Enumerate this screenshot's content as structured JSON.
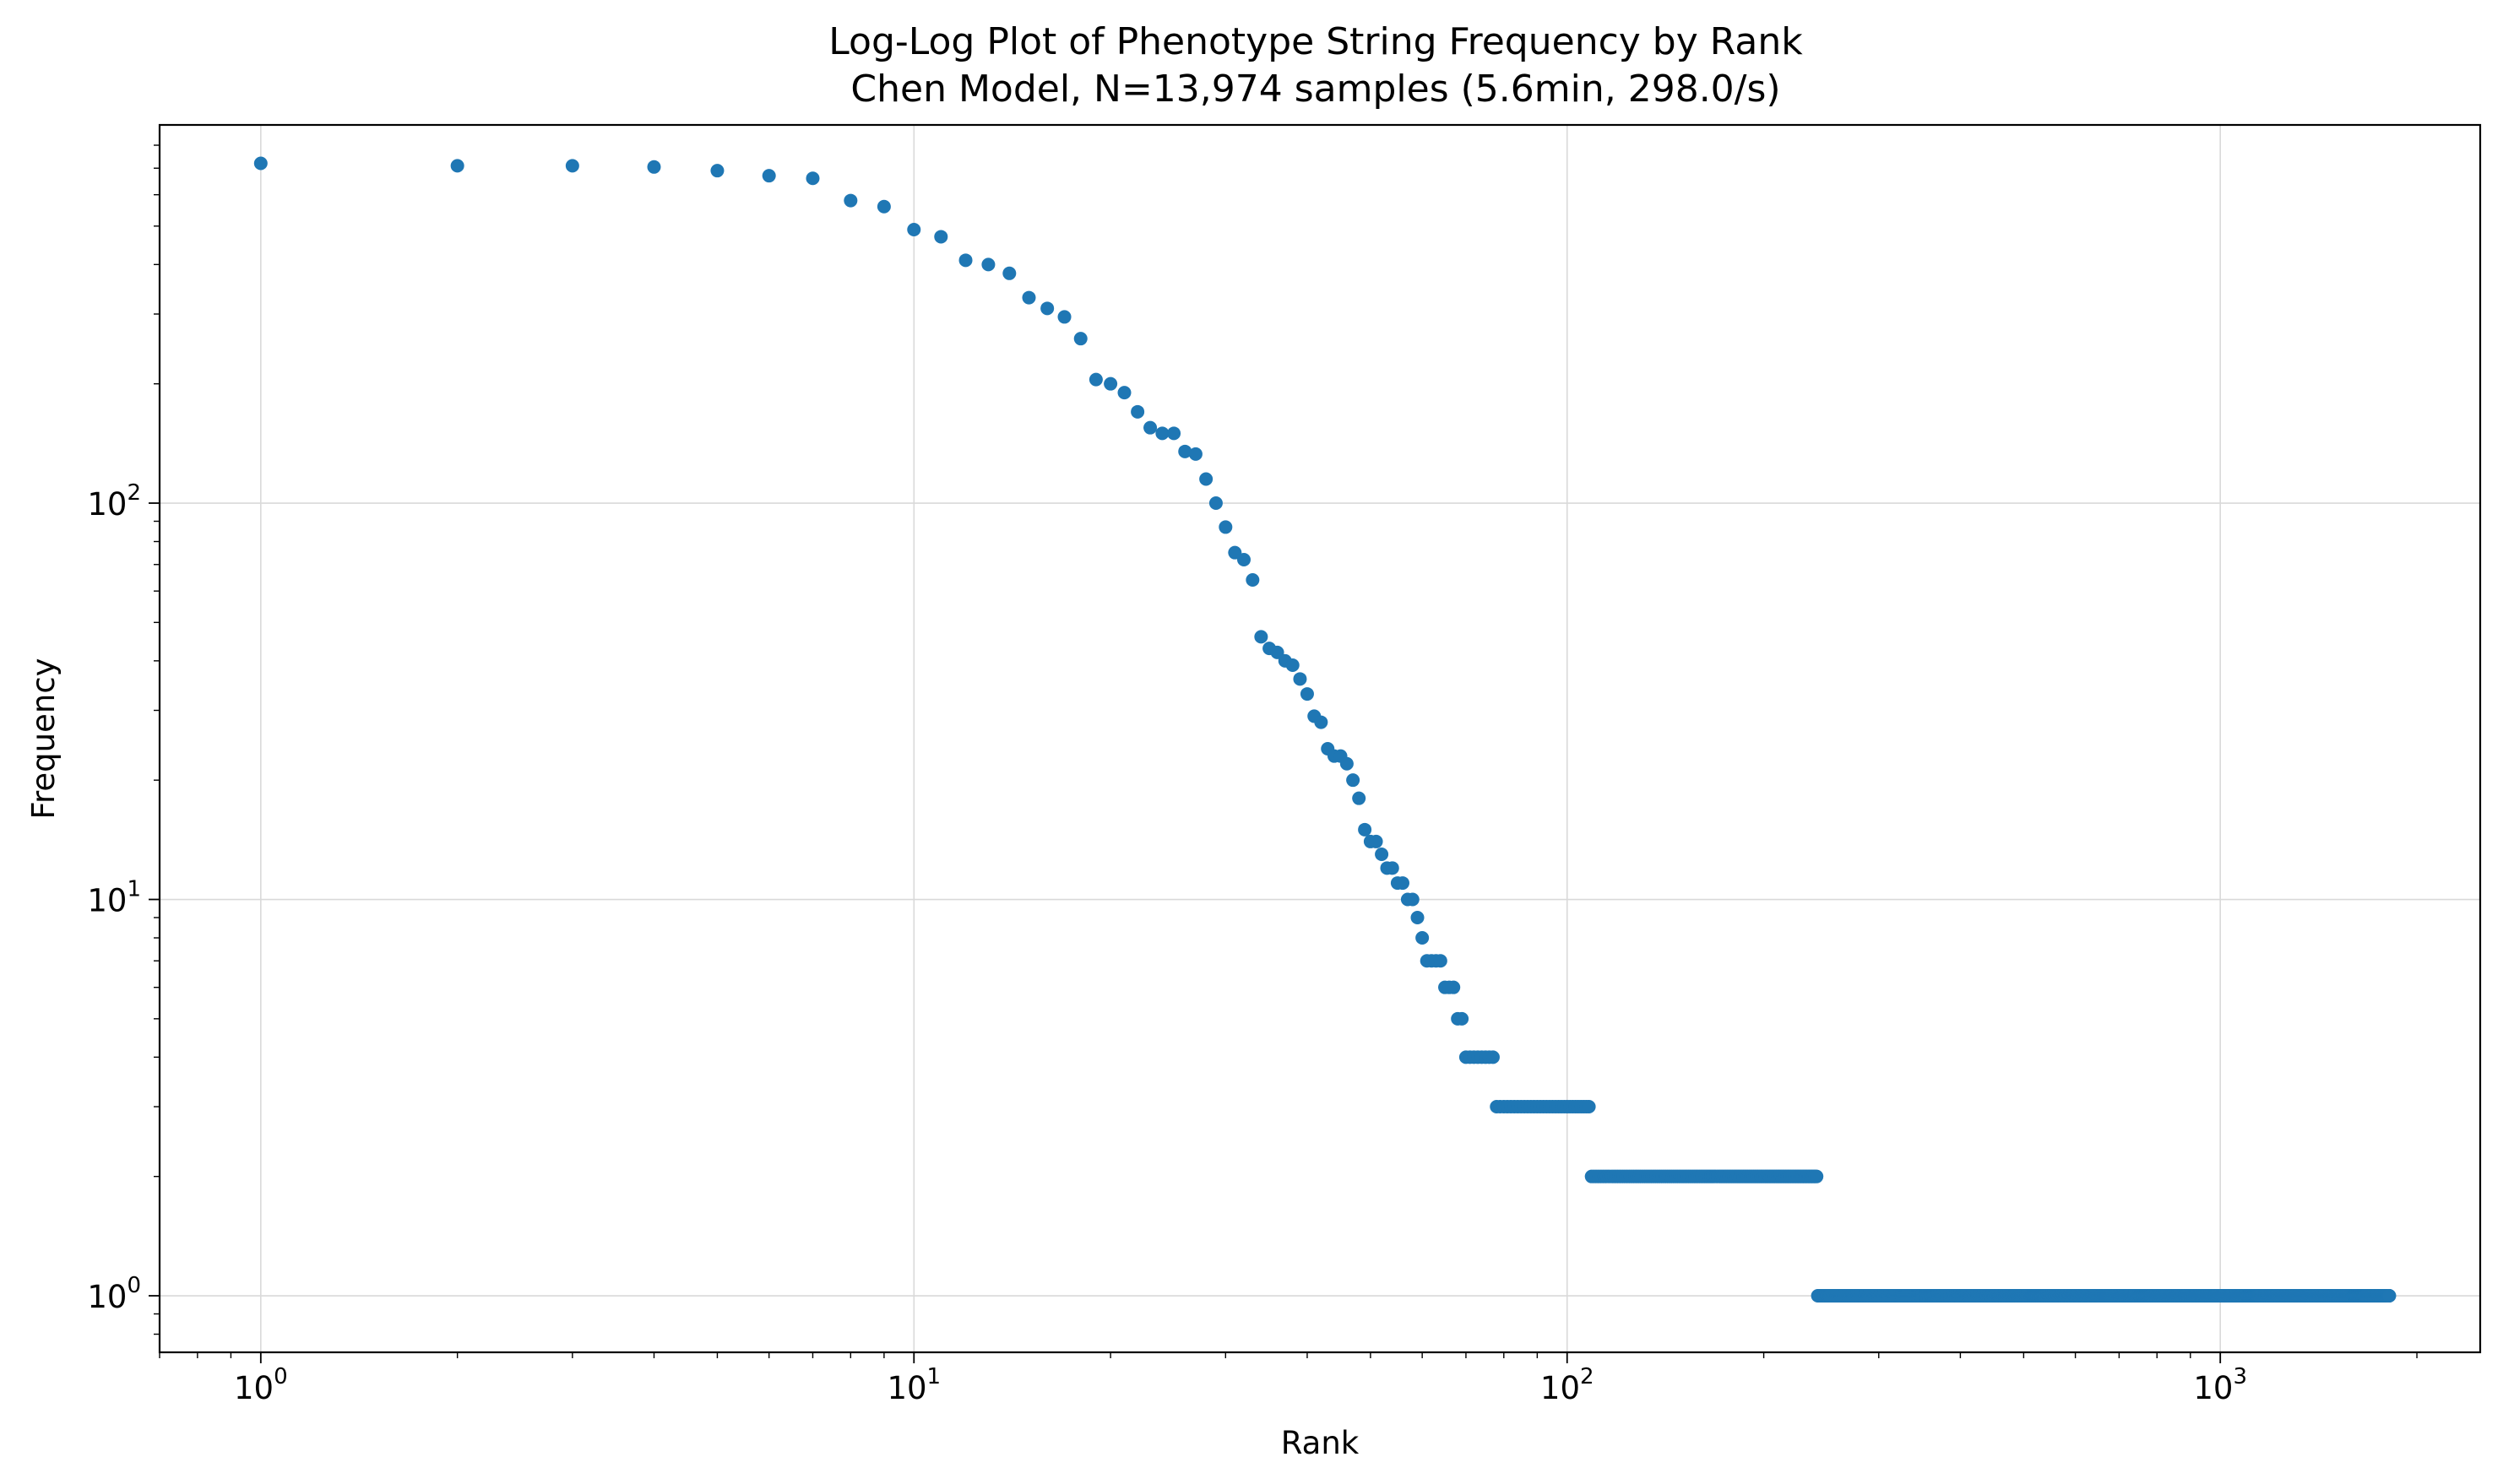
{
  "chart_data": {
    "type": "scatter",
    "title": "Log-Log Plot of Phenotype String Frequency by Rank",
    "subtitle": "Chen Model, N=13,974 samples (5.6min, 298.0/s)",
    "xlabel": "Rank",
    "ylabel": "Frequency",
    "xscale": "log",
    "yscale": "log",
    "xlim": [
      0.7,
      2500
    ],
    "ylim": [
      0.72,
      900
    ],
    "grid": true,
    "color": "#1f77b4",
    "x_ticks": [
      {
        "value": 1,
        "base": "10",
        "exp": "0"
      },
      {
        "value": 10,
        "base": "10",
        "exp": "1"
      },
      {
        "value": 100,
        "base": "10",
        "exp": "2"
      },
      {
        "value": 1000,
        "base": "10",
        "exp": "3"
      }
    ],
    "y_ticks": [
      {
        "value": 1,
        "base": "10",
        "exp": "0"
      },
      {
        "value": 10,
        "base": "10",
        "exp": "1"
      },
      {
        "value": 100,
        "base": "10",
        "exp": "2"
      }
    ],
    "points": [
      [
        1,
        720
      ],
      [
        2,
        710
      ],
      [
        3,
        710
      ],
      [
        4,
        705
      ],
      [
        5,
        690
      ],
      [
        6,
        670
      ],
      [
        7,
        660
      ],
      [
        8,
        580
      ],
      [
        9,
        560
      ],
      [
        10,
        490
      ],
      [
        11,
        470
      ],
      [
        12,
        410
      ],
      [
        13,
        400
      ],
      [
        14,
        380
      ],
      [
        15,
        330
      ],
      [
        16,
        310
      ],
      [
        17,
        295
      ],
      [
        18,
        260
      ],
      [
        19,
        205
      ],
      [
        20,
        200
      ],
      [
        21,
        190
      ],
      [
        22,
        170
      ],
      [
        23,
        155
      ],
      [
        24,
        150
      ],
      [
        25,
        150
      ],
      [
        26,
        135
      ],
      [
        27,
        133
      ],
      [
        28,
        115
      ],
      [
        29,
        100
      ],
      [
        30,
        87
      ],
      [
        31,
        75
      ],
      [
        32,
        72
      ],
      [
        33,
        64
      ],
      [
        34,
        46
      ],
      [
        35,
        43
      ],
      [
        36,
        42
      ],
      [
        37,
        40
      ],
      [
        38,
        39
      ],
      [
        39,
        36
      ],
      [
        40,
        33
      ],
      [
        41,
        29
      ],
      [
        42,
        28
      ],
      [
        43,
        24
      ],
      [
        44,
        23
      ],
      [
        45,
        23
      ],
      [
        46,
        22
      ],
      [
        47,
        20
      ],
      [
        48,
        18
      ],
      [
        49,
        15
      ],
      [
        50,
        14
      ],
      [
        51,
        14
      ],
      [
        52,
        13
      ],
      [
        53,
        12
      ],
      [
        54,
        12
      ],
      [
        55,
        11
      ],
      [
        56,
        11
      ],
      [
        57,
        10
      ],
      [
        58,
        10
      ],
      [
        59,
        9
      ],
      [
        60,
        8
      ],
      [
        61,
        7
      ],
      [
        62,
        7
      ],
      [
        63,
        7
      ],
      [
        64,
        7
      ],
      [
        65,
        6
      ],
      [
        66,
        6
      ],
      [
        67,
        6
      ],
      [
        68,
        5
      ],
      [
        69,
        5
      ]
    ],
    "plateaus": [
      {
        "from": 70,
        "to": 77,
        "value": 4
      },
      {
        "from": 78,
        "to": 108,
        "value": 3
      },
      {
        "from": 109,
        "to": 241,
        "value": 2
      },
      {
        "from": 242,
        "to": 1815,
        "value": 1
      }
    ]
  }
}
